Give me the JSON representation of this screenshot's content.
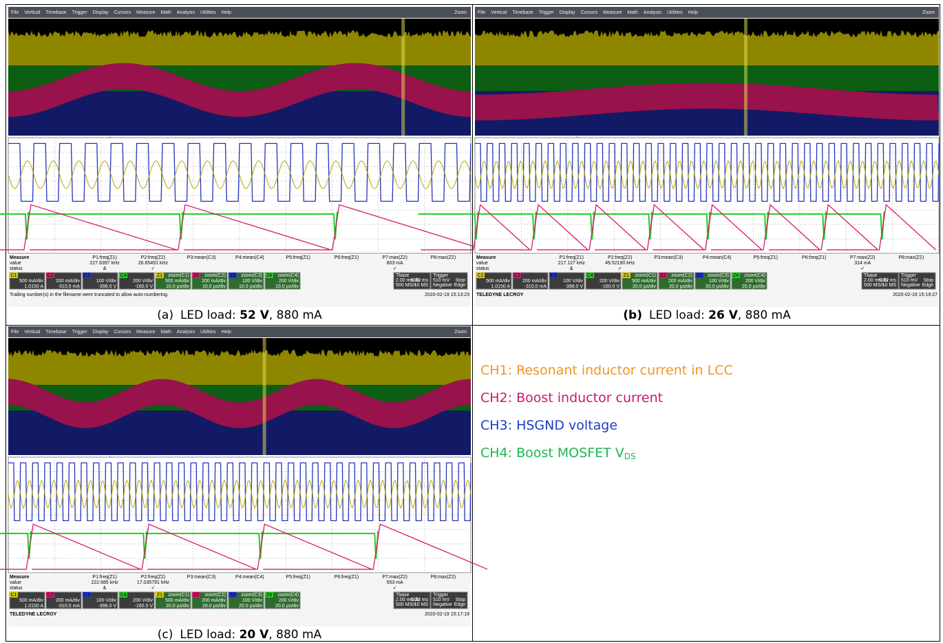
{
  "menu": [
    "File",
    "Vertical",
    "Timebase",
    "Trigger",
    "Display",
    "Cursors",
    "Measure",
    "Math",
    "Analysis",
    "Utilities",
    "Help"
  ],
  "zoom": "Zoom",
  "panels": [
    {
      "caption": {
        "label": "(a)",
        "label_bold": false,
        "text": "LED load: ",
        "bold": "52 V",
        "rest": ", 880 mA"
      },
      "measure": {
        "title": "Measure",
        "rows": [
          "value",
          "status"
        ],
        "params": [
          "P1:freq(Z1)",
          "P2:freq(Z2)",
          "P3:mean(C3)",
          "P4:mean(C4)",
          "P5:freq(Z1)",
          "P6:freq(Z1)",
          "P7:max(Z2)",
          "P8:max(Z2)"
        ],
        "values": [
          "227.6397 kHz",
          "26.65491 kHz",
          null,
          null,
          null,
          null,
          "603 mA",
          null
        ],
        "status": [
          "&",
          "✓",
          null,
          null,
          null,
          null,
          "✓",
          null
        ]
      },
      "channels": [
        {
          "tag": "C1",
          "lines": [
            "500 mA/div",
            "1.0150 A"
          ]
        },
        {
          "tag": "C2",
          "lines": [
            "200 mA/div",
            "-310.0 mA"
          ]
        },
        {
          "tag": "C3",
          "lines": [
            "100 V/div",
            "-398.0 V"
          ]
        },
        {
          "tag": "C4",
          "lines": [
            "200 V/div",
            "-160.0 V"
          ]
        },
        {
          "tag": "Z1",
          "lines": [
            "zoom(C1)",
            "500 mA/div",
            "10.0 µs/div"
          ]
        },
        {
          "tag": "Z2",
          "lines": [
            "zoom(C2)",
            "200 mA/div",
            "10.0 µs/div"
          ]
        },
        {
          "tag": "Z3",
          "lines": [
            "zoom(C3)",
            "100 V/div",
            "10.0 µs/div"
          ]
        },
        {
          "tag": "Z4",
          "lines": [
            "zoom(C4)",
            "200 V/div",
            "10.0 µs/div"
          ]
        }
      ],
      "timebase": [
        "Tbase",
        "-5.32 ms",
        "2.00 ms/div",
        "10 MS",
        "500 MS/s"
      ],
      "trigger": [
        "Trigger",
        "Stop",
        "510 mV",
        "Edge",
        "Negative"
      ],
      "footer": "Trailing number(s) in the filename were truncated to allow auto-numbering.",
      "timestamp": "2020-02-19 15:13:23"
    },
    {
      "caption": {
        "label": "(b)",
        "label_bold": true,
        "text": "LED load: ",
        "bold": "26 V",
        "rest": ", 880 mA"
      },
      "measure": {
        "title": "Measure",
        "rows": [
          "value",
          "status"
        ],
        "params": [
          "P1:freq(Z1)",
          "P2:freq(Z2)",
          "P3:mean(C3)",
          "P4:mean(C4)",
          "P5:freq(Z1)",
          "P6:freq(Z1)",
          "P7:max(Z2)",
          "P8:max(Z2)"
        ],
        "values": [
          "217.127 kHz",
          "49.52190 kHz",
          null,
          null,
          null,
          null,
          "314 mA",
          null
        ],
        "status": [
          "&",
          "✓",
          null,
          null,
          null,
          null,
          "✓",
          null
        ]
      },
      "channels": [
        {
          "tag": "C1",
          "lines": [
            "500 mA/div",
            "1.0150 A"
          ]
        },
        {
          "tag": "C2",
          "lines": [
            "200 mA/div",
            "-310.0 mA"
          ]
        },
        {
          "tag": "C3",
          "lines": [
            "100 V/div",
            "-398.0 V"
          ]
        },
        {
          "tag": "C4",
          "lines": [
            "200 V/div",
            "-160.0 V"
          ]
        },
        {
          "tag": "Z1",
          "lines": [
            "zoom(C1)",
            "500 mA/div",
            "20.0 µs/div"
          ]
        },
        {
          "tag": "Z2",
          "lines": [
            "zoom(C2)",
            "200 mA/div",
            "20.0 µs/div"
          ]
        },
        {
          "tag": "Z3",
          "lines": [
            "zoom(C3)",
            "100 V/div",
            "20.0 µs/div"
          ]
        },
        {
          "tag": "Z4",
          "lines": [
            "zoom(C4)",
            "200 V/div",
            "20.0 µs/div"
          ]
        }
      ],
      "timebase": [
        "Tbase",
        "-5.32 ms",
        "2.00 ms/div",
        "10 MS",
        "500 MS/s"
      ],
      "trigger": [
        "Trigger",
        "Stop",
        "510 mV",
        "Edge",
        "Negative"
      ],
      "footer": "TELEDYNE LECROY",
      "timestamp": "2020-02-19 15:19:27"
    },
    {
      "caption": {
        "label": "(c)",
        "label_bold": false,
        "text": "LED load: ",
        "bold": "20 V",
        "rest": ", 880 mA"
      },
      "measure": {
        "title": "Measure",
        "rows": [
          "value",
          "status"
        ],
        "params": [
          "P1:freq(Z1)",
          "P2:freq(Z2)",
          "P3:mean(C3)",
          "P4:mean(C4)",
          "P5:freq(Z1)",
          "P6:freq(Z1)",
          "P7:max(Z2)",
          "P8:max(Z2)"
        ],
        "values": [
          "222.685 kHz",
          "17.035791 kHz",
          null,
          null,
          null,
          null,
          "553 mA",
          null
        ],
        "status": [
          "&",
          "✓",
          null,
          null,
          null,
          null,
          "✓",
          null
        ]
      },
      "channels": [
        {
          "tag": "C1",
          "lines": [
            "500 mA/div",
            "1.0150 A"
          ]
        },
        {
          "tag": "C2",
          "lines": [
            "200 mA/div",
            "-310.0 mA"
          ]
        },
        {
          "tag": "C3",
          "lines": [
            "100 V/div",
            "-398.0 V"
          ]
        },
        {
          "tag": "C4",
          "lines": [
            "200 V/div",
            "-160.0 V"
          ]
        },
        {
          "tag": "Z1",
          "lines": [
            "zoom(C1)",
            "500 mA/div",
            "20.0 µs/div"
          ]
        },
        {
          "tag": "Z2",
          "lines": [
            "zoom(C2)",
            "200 mA/div",
            "20.0 µs/div"
          ]
        },
        {
          "tag": "Z3",
          "lines": [
            "zoom(C3)",
            "100 V/div",
            "20.0 µs/div"
          ]
        },
        {
          "tag": "Z4",
          "lines": [
            "zoom(C4)",
            "200 V/div",
            "20.0 µs/div"
          ]
        }
      ],
      "timebase": [
        "Tbase",
        "-5.32 ms",
        "2.00 ms/div",
        "10 MS",
        "500 MS/s"
      ],
      "trigger": [
        "Trigger",
        "Stop",
        "510 mV",
        "Edge",
        "Negative"
      ],
      "footer": "TELEDYNE LECROY",
      "timestamp": "2020-02-19 15:17:19"
    }
  ],
  "legend": [
    {
      "text": "CH1: Resonant inductor current in LCC",
      "color": "#f0961e"
    },
    {
      "text": "CH2: Boost inductor current",
      "color": "#c8186e"
    },
    {
      "text": "CH3: HSGND voltage",
      "color": "#1e3cc8"
    },
    {
      "text": "CH4: Boost MOSFET V",
      "sub": "DS",
      "color": "#1eb450"
    }
  ]
}
